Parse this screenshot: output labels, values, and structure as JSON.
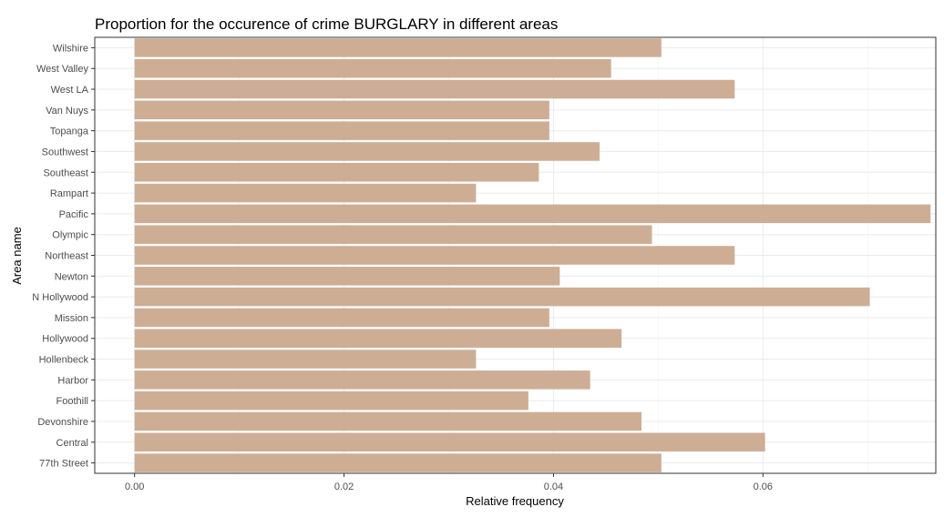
{
  "chart_data": {
    "type": "bar",
    "orientation": "horizontal",
    "title": "Proportion for the occurence of crime BURGLARY in different areas",
    "xlabel": "Relative frequency",
    "ylabel": "Area name",
    "xlim": [
      -0.0038,
      0.0765
    ],
    "x_ticks": [
      0.0,
      0.02,
      0.04,
      0.06
    ],
    "x_tick_labels": [
      "0.00",
      "0.02",
      "0.04",
      "0.06"
    ],
    "grid": true,
    "bar_color": "#CDAE95",
    "categories": [
      "Wilshire",
      "West Valley",
      "West LA",
      "Van Nuys",
      "Topanga",
      "Southwest",
      "Southeast",
      "Rampart",
      "Pacific",
      "Olympic",
      "Northeast",
      "Newton",
      "N Hollywood",
      "Mission",
      "Hollywood",
      "Hollenbeck",
      "Harbor",
      "Foothill",
      "Devonshire",
      "Central",
      "77th Street"
    ],
    "values": [
      0.0503,
      0.0455,
      0.0573,
      0.0396,
      0.0396,
      0.0444,
      0.0386,
      0.0326,
      0.076,
      0.0494,
      0.0573,
      0.0406,
      0.0702,
      0.0396,
      0.0465,
      0.0326,
      0.0435,
      0.0376,
      0.0484,
      0.0602,
      0.0503
    ]
  }
}
